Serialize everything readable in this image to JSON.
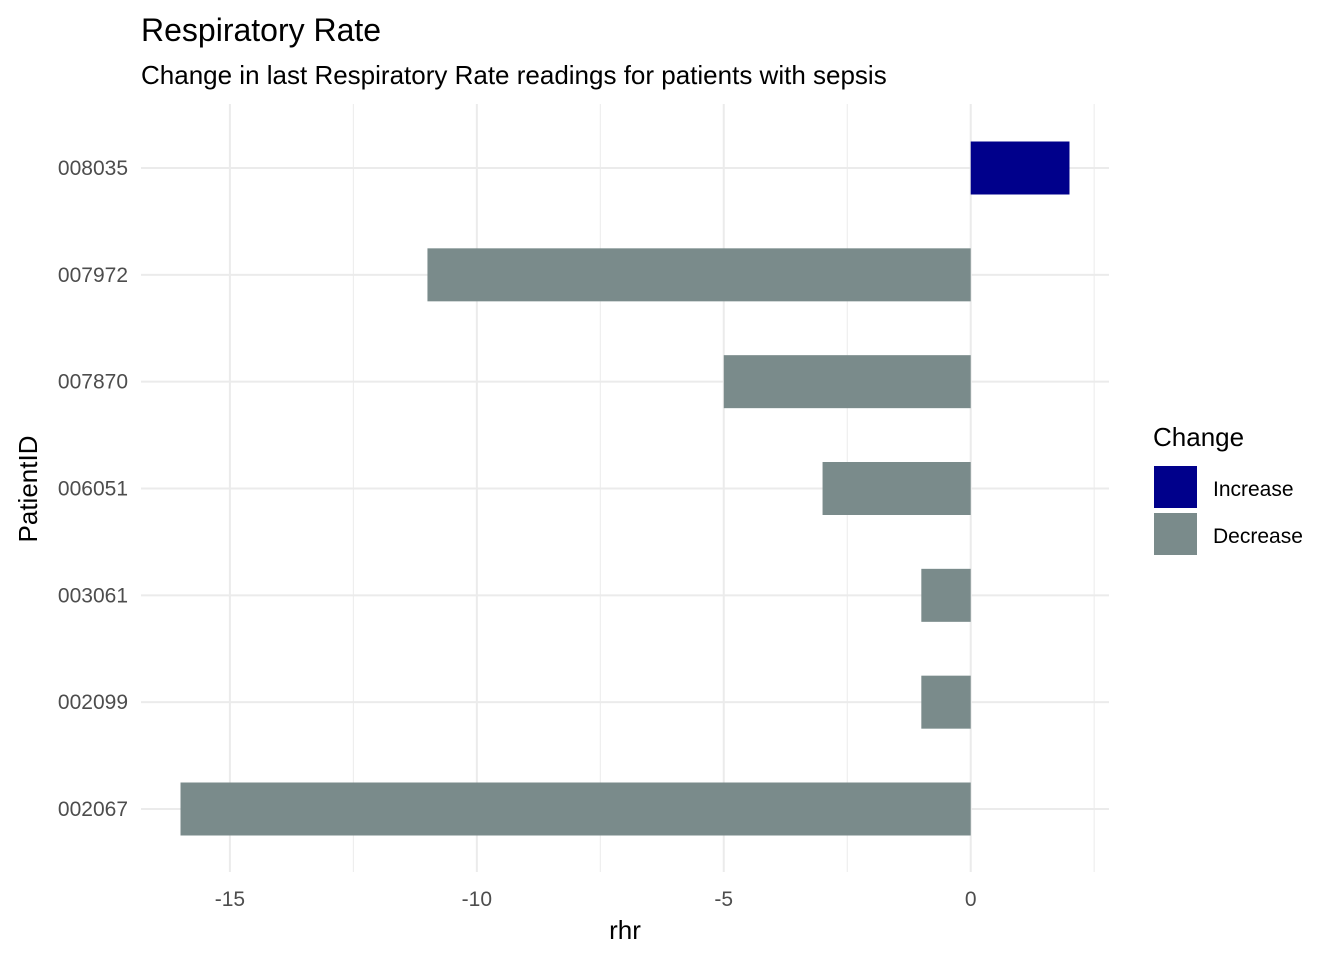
{
  "chart_data": {
    "type": "bar",
    "orientation": "horizontal",
    "title": "Respiratory Rate",
    "subtitle": "Change in last Respiratory Rate readings for patients with sepsis",
    "xlabel": "rhr",
    "ylabel": "PatientID",
    "xlim": [
      -16.8,
      2.8
    ],
    "x_ticks": [
      -15,
      -10,
      -5,
      0
    ],
    "x_tick_labels": [
      "-15",
      "-10",
      "-5",
      "0"
    ],
    "x_minor_ticks": [
      -12.5,
      -7.5,
      -2.5,
      2.5
    ],
    "categories": [
      "002067",
      "002099",
      "003061",
      "006051",
      "007870",
      "007972",
      "008035"
    ],
    "values": [
      -16,
      -1,
      -1,
      -3,
      -5,
      -11,
      2
    ],
    "change": [
      "Decrease",
      "Decrease",
      "Decrease",
      "Decrease",
      "Decrease",
      "Decrease",
      "Increase"
    ],
    "grid": true,
    "legend": {
      "title": "Change",
      "position": "right",
      "entries": [
        {
          "label": "Increase",
          "color": "#00008b"
        },
        {
          "label": "Decrease",
          "color": "#7a8b8b"
        }
      ]
    },
    "colors": {
      "Increase": "#00008b",
      "Decrease": "#7a8b8b"
    }
  }
}
